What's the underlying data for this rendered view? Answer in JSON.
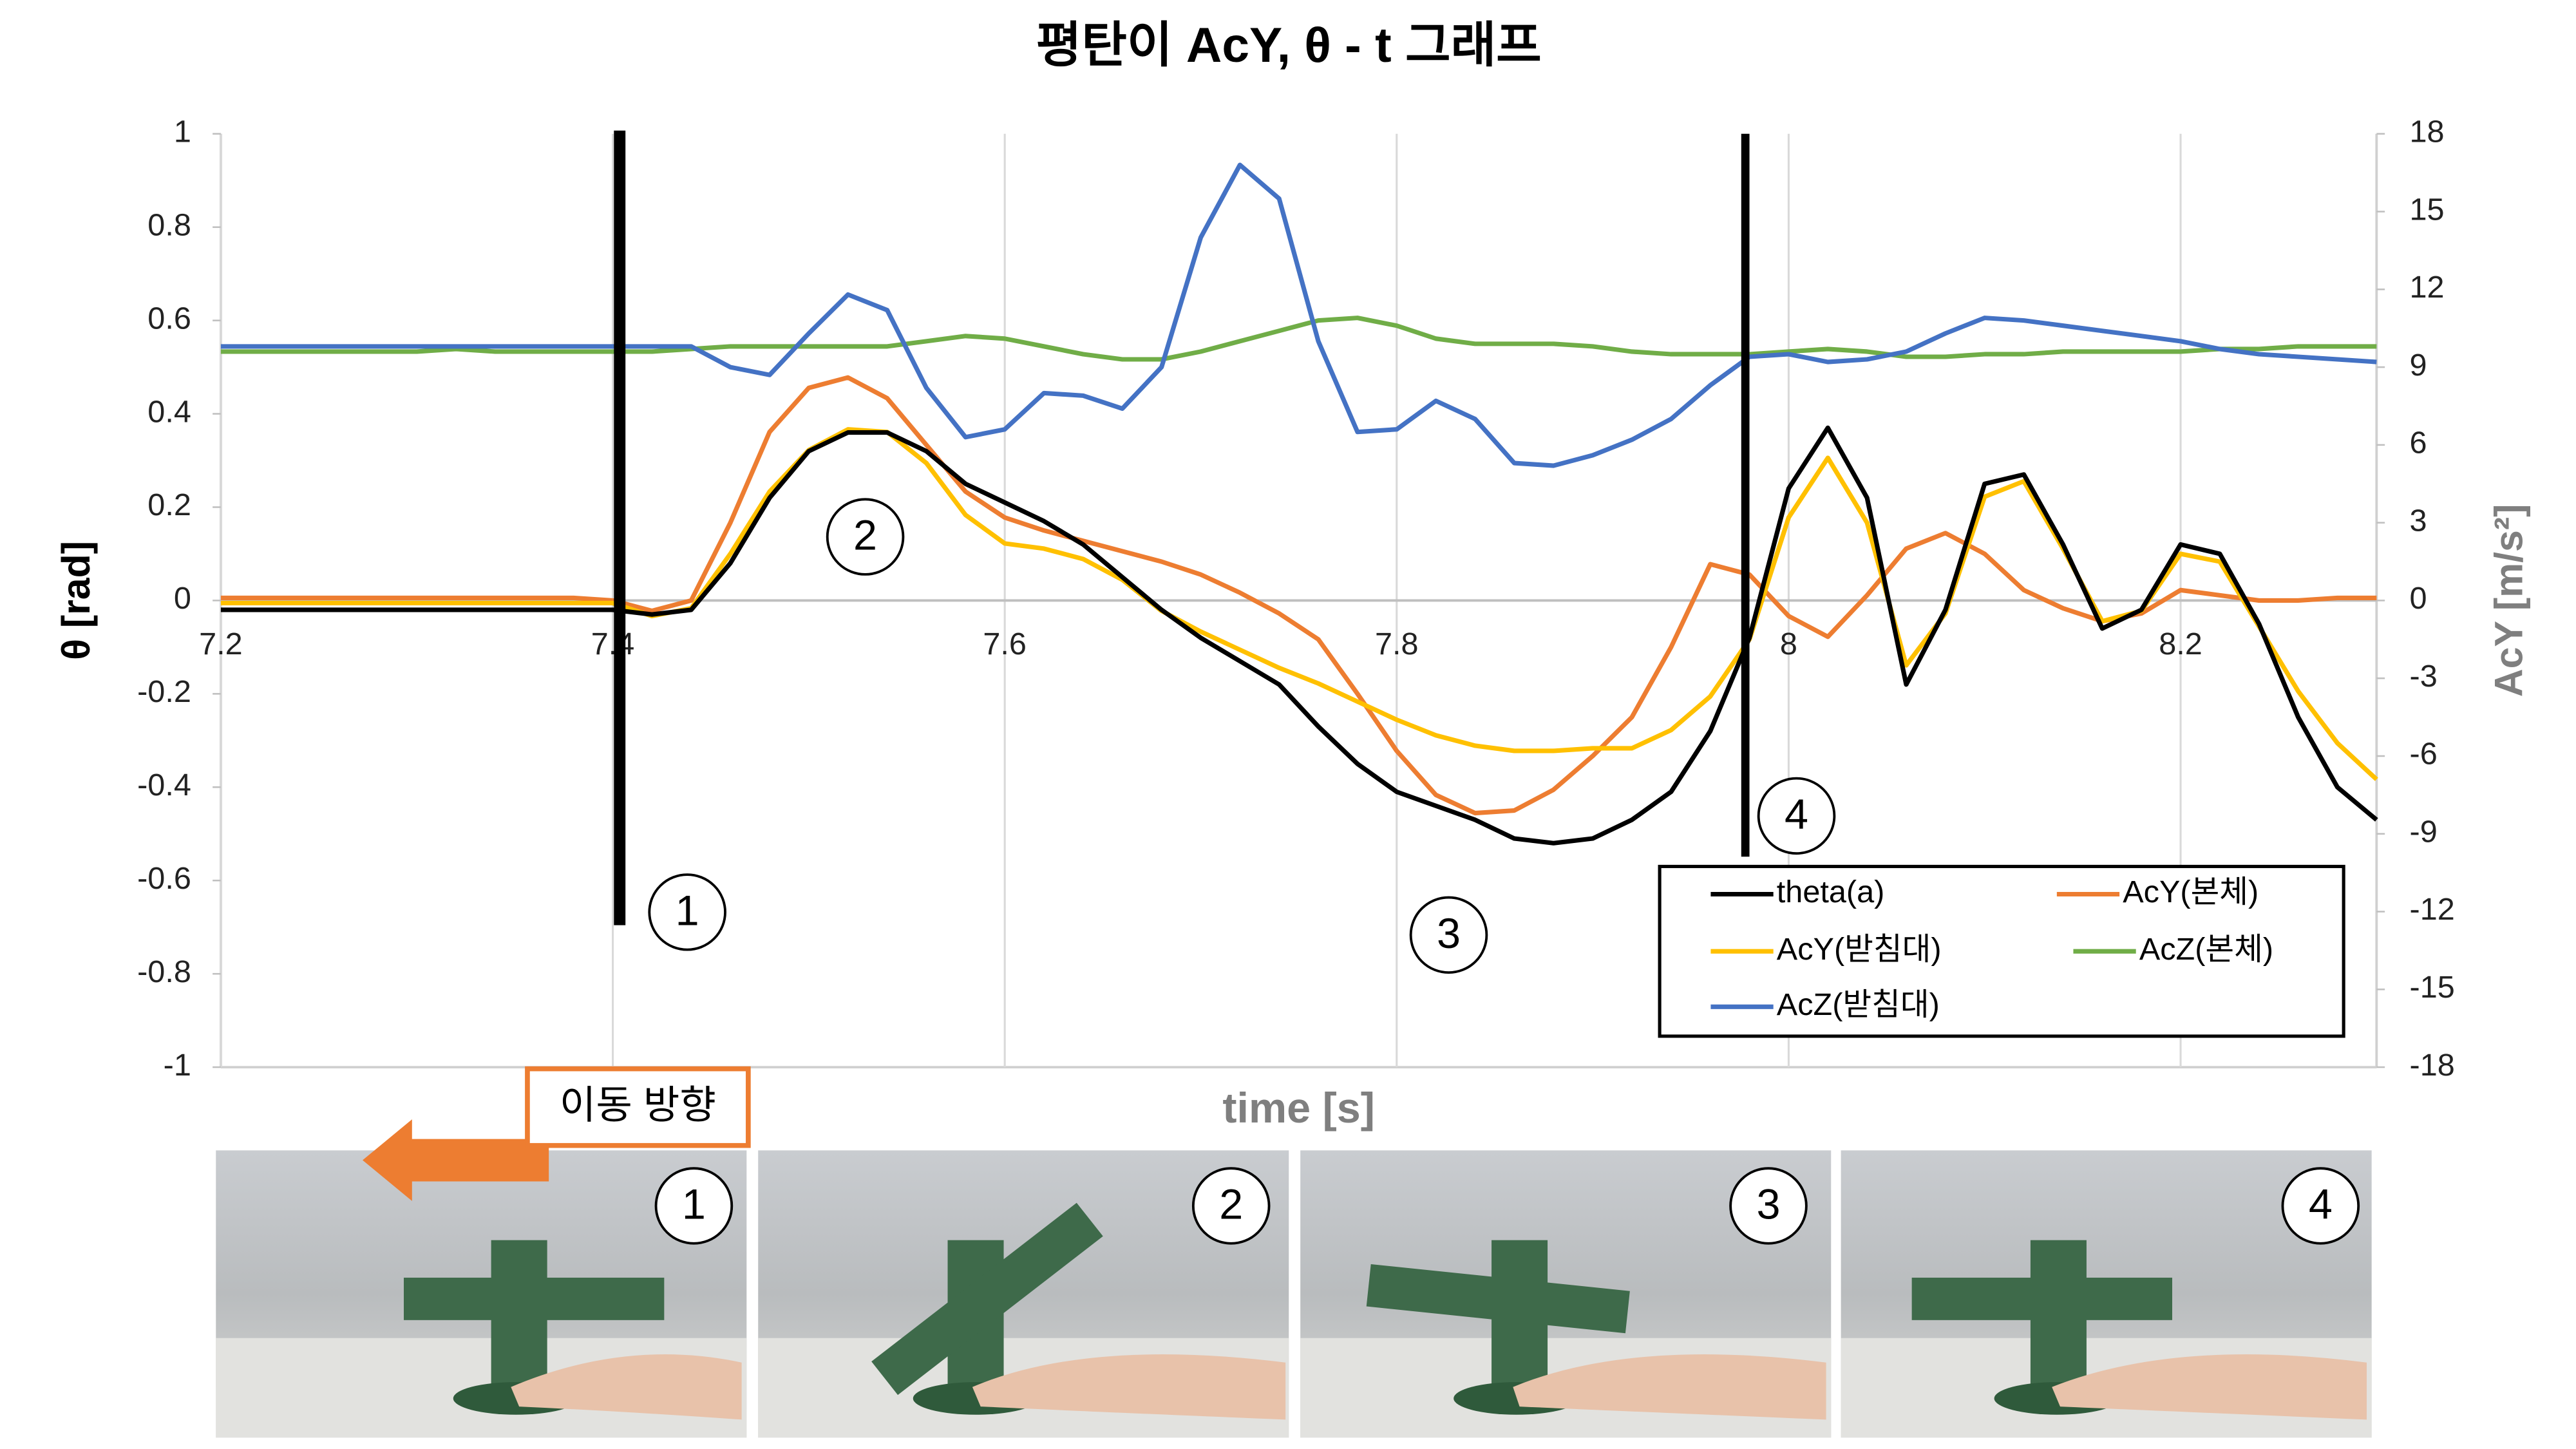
{
  "chart_data": {
    "type": "line",
    "title": "평탄이 AcY, θ - t 그래프",
    "xlabel": "time [s]",
    "ylabel": "θ [rad]",
    "y2label": "AcY [m/s²]",
    "x": [
      7.2,
      7.22,
      7.24,
      7.26,
      7.28,
      7.3,
      7.32,
      7.34,
      7.36,
      7.38,
      7.4,
      7.42,
      7.44,
      7.46,
      7.48,
      7.5,
      7.52,
      7.54,
      7.56,
      7.58,
      7.6,
      7.62,
      7.64,
      7.66,
      7.68,
      7.7,
      7.72,
      7.74,
      7.76,
      7.78,
      7.8,
      7.82,
      7.84,
      7.86,
      7.88,
      7.9,
      7.92,
      7.94,
      7.96,
      7.98,
      8,
      8.02,
      8.04,
      8.06,
      8.08,
      8.1,
      8.12,
      8.14,
      8.16,
      8.18,
      8.2,
      8.22,
      8.24,
      8.26,
      8.28,
      8.3
    ],
    "series": [
      {
        "name": "theta(a)",
        "color": "#000000",
        "axis": "y",
        "values": [
          -0.02,
          -0.02,
          -0.02,
          -0.02,
          -0.02,
          -0.02,
          -0.02,
          -0.02,
          -0.02,
          -0.02,
          -0.02,
          -0.03,
          -0.02,
          0.08,
          0.22,
          0.32,
          0.36,
          0.36,
          0.32,
          0.25,
          0.21,
          0.17,
          0.12,
          0.05,
          -0.02,
          -0.08,
          -0.13,
          -0.18,
          -0.27,
          -0.35,
          -0.41,
          -0.44,
          -0.47,
          -0.51,
          -0.52,
          -0.51,
          -0.47,
          -0.41,
          -0.28,
          -0.08,
          0.24,
          0.37,
          0.22,
          -0.18,
          -0.02,
          0.25,
          0.27,
          0.12,
          -0.06,
          -0.02,
          0.12,
          0.1,
          -0.05,
          -0.25,
          -0.4,
          -0.47
        ]
      },
      {
        "name": "AcY(본체)",
        "color": "#ed7d31",
        "axis": "y2",
        "values": [
          0.1,
          0.1,
          0.1,
          0.1,
          0.1,
          0.1,
          0.1,
          0.1,
          0.1,
          0.1,
          0.0,
          -0.4,
          0.0,
          3.0,
          6.5,
          8.2,
          8.6,
          7.8,
          6.0,
          4.2,
          3.2,
          2.7,
          2.3,
          1.9,
          1.5,
          1.0,
          0.3,
          -0.5,
          -1.5,
          -3.6,
          -5.8,
          -7.5,
          -8.2,
          -8.1,
          -7.3,
          -6.0,
          -4.5,
          -1.8,
          1.4,
          1.0,
          -0.6,
          -1.4,
          0.2,
          2.0,
          2.6,
          1.8,
          0.4,
          -0.3,
          -0.8,
          -0.5,
          0.4,
          0.2,
          0.0,
          0.0,
          0.1,
          0.1
        ]
      },
      {
        "name": "AcY(받침대)",
        "color": "#ffc000",
        "axis": "y2",
        "values": [
          -0.1,
          -0.1,
          -0.1,
          -0.1,
          -0.1,
          -0.1,
          -0.1,
          -0.1,
          -0.1,
          -0.1,
          -0.1,
          -0.6,
          -0.3,
          1.8,
          4.2,
          5.8,
          6.6,
          6.5,
          5.3,
          3.3,
          2.2,
          2.0,
          1.6,
          0.8,
          -0.4,
          -1.2,
          -1.9,
          -2.6,
          -3.2,
          -3.9,
          -4.6,
          -5.2,
          -5.6,
          -5.8,
          -5.8,
          -5.7,
          -5.7,
          -5.0,
          -3.7,
          -1.5,
          3.2,
          5.5,
          3.0,
          -2.5,
          -0.5,
          4.0,
          4.6,
          2.0,
          -0.8,
          -0.4,
          1.8,
          1.5,
          -1.0,
          -3.5,
          -5.5,
          -6.9
        ]
      },
      {
        "name": "AcZ(본체)",
        "color": "#70ad47",
        "axis": "y2",
        "values": [
          9.6,
          9.6,
          9.6,
          9.6,
          9.6,
          9.6,
          9.7,
          9.6,
          9.6,
          9.6,
          9.6,
          9.6,
          9.7,
          9.8,
          9.8,
          9.8,
          9.8,
          9.8,
          10.0,
          10.2,
          10.1,
          9.8,
          9.5,
          9.3,
          9.3,
          9.6,
          10.0,
          10.4,
          10.8,
          10.9,
          10.6,
          10.1,
          9.9,
          9.9,
          9.9,
          9.8,
          9.6,
          9.5,
          9.5,
          9.5,
          9.6,
          9.7,
          9.6,
          9.4,
          9.4,
          9.5,
          9.5,
          9.6,
          9.6,
          9.6,
          9.6,
          9.7,
          9.7,
          9.8,
          9.8,
          9.8
        ]
      },
      {
        "name": "AcZ(받침대)",
        "color": "#4472c4",
        "axis": "y2",
        "values": [
          9.8,
          9.8,
          9.8,
          9.8,
          9.8,
          9.8,
          9.8,
          9.8,
          9.8,
          9.8,
          9.8,
          9.8,
          9.8,
          9.0,
          8.7,
          10.3,
          11.8,
          11.2,
          8.2,
          6.3,
          6.6,
          8.0,
          7.9,
          7.4,
          9.0,
          14.0,
          16.8,
          15.5,
          10.0,
          6.5,
          6.6,
          7.7,
          7.0,
          5.3,
          5.2,
          5.6,
          6.2,
          7.0,
          8.3,
          9.4,
          9.5,
          9.2,
          9.3,
          9.6,
          10.3,
          10.9,
          10.8,
          10.6,
          10.4,
          10.2,
          10.0,
          9.7,
          9.5,
          9.4,
          9.3,
          9.2
        ]
      }
    ],
    "xlim": [
      7.2,
      8.3
    ],
    "xticks": [
      7.2,
      7.4,
      7.6,
      7.8,
      8,
      8.2
    ],
    "ylim": [
      -1,
      1
    ],
    "yticks": [
      -1,
      -0.8,
      -0.6,
      -0.4,
      -0.2,
      0,
      0.2,
      0.4,
      0.6,
      0.8,
      1
    ],
    "y2lim": [
      -18,
      18
    ],
    "y2ticks": [
      -18,
      -15,
      -12,
      -9,
      -6,
      -3,
      0,
      3,
      6,
      9,
      12,
      15,
      18
    ],
    "grid": true,
    "legend": "lower right",
    "annotations": [
      "1",
      "2",
      "3",
      "4"
    ],
    "direction_label": "이동 방향",
    "photo_labels": [
      "1",
      "2",
      "3",
      "4"
    ]
  }
}
